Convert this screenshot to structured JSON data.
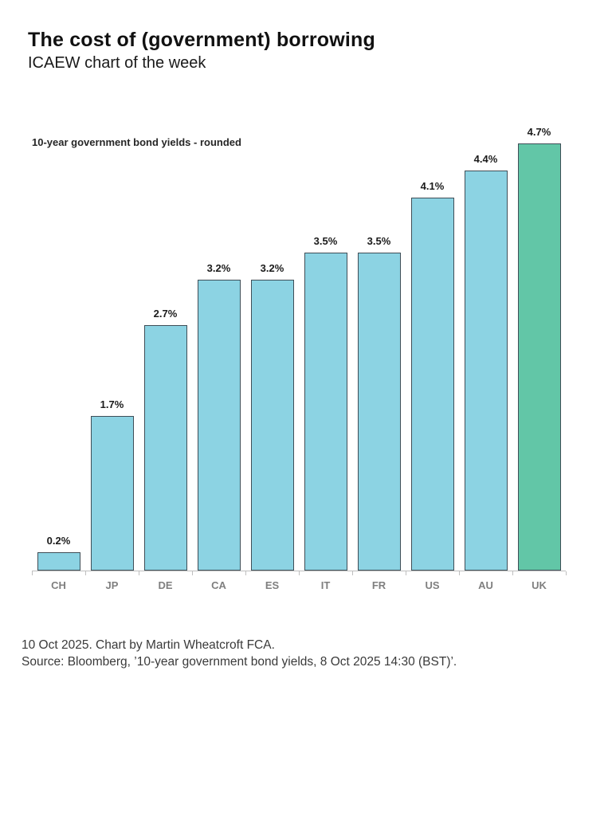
{
  "header": {
    "title": "The cost of (government) borrowing",
    "subtitle": "ICAEW chart of the week"
  },
  "chart_data": {
    "type": "bar",
    "title": "10-year government bond yields - rounded",
    "categories": [
      "CH",
      "JP",
      "DE",
      "CA",
      "ES",
      "IT",
      "FR",
      "US",
      "AU",
      "UK"
    ],
    "values": [
      0.2,
      1.7,
      2.7,
      3.2,
      3.2,
      3.5,
      3.5,
      4.1,
      4.4,
      4.7
    ],
    "labels": [
      "0.2%",
      "1.7%",
      "2.7%",
      "3.2%",
      "3.2%",
      "3.5%",
      "3.5%",
      "4.1%",
      "4.4%",
      "4.7%"
    ],
    "ylim": [
      0,
      4.7
    ],
    "grid": false,
    "legend": "none",
    "xlabel": "",
    "ylabel": "",
    "bar_color": "#8cd3e3",
    "highlight_color": "#62c6a7",
    "highlight_category": "UK",
    "bar_border_color": "#3f4e57",
    "axis_color": "#bfbfbf",
    "category_label_color": "#7f7f7f",
    "value_label_color": "#1a1a1a"
  },
  "footer": {
    "line1": "10 Oct 2025. Chart by Martin Wheatcroft FCA.",
    "line2": "Source: Bloomberg, ’10-year government bond yields, 8 Oct 2025 14:30 (BST)’."
  }
}
